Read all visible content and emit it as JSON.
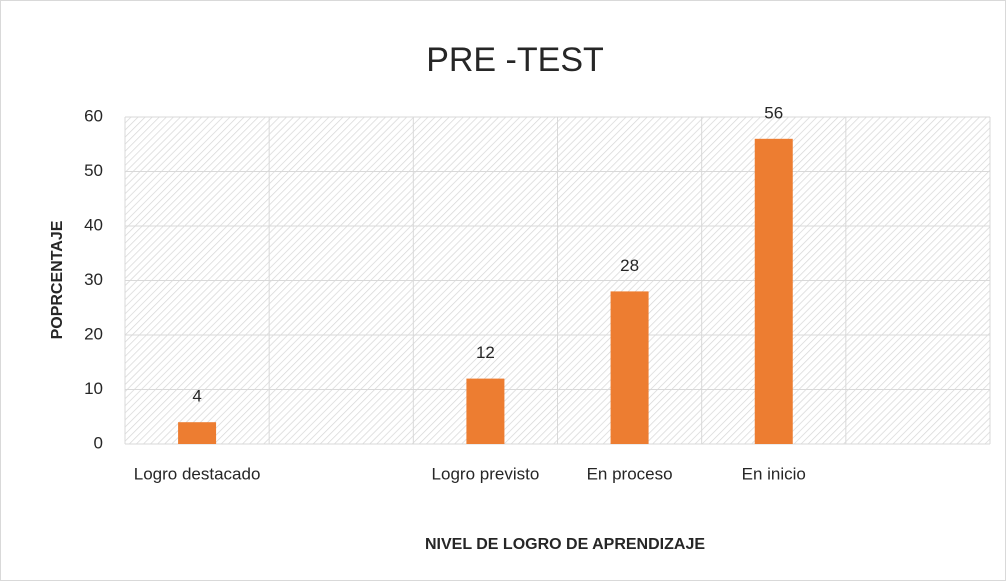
{
  "chart_data": {
    "type": "bar",
    "title": "PRE -TEST",
    "categories": [
      "Logro destacado",
      null,
      "Logro previsto",
      "En proceso",
      "En inicio",
      null
    ],
    "values": [
      4,
      null,
      12,
      28,
      56,
      null
    ],
    "color": "#ed7d31",
    "ylim": [
      0,
      60
    ],
    "yticks": [
      0,
      10,
      20,
      30,
      40,
      50,
      60
    ],
    "grid": true,
    "x_label": "NIVEL DE LOGRO DE APRENDIZAJE",
    "y_label": "POPRCENTAJE"
  }
}
